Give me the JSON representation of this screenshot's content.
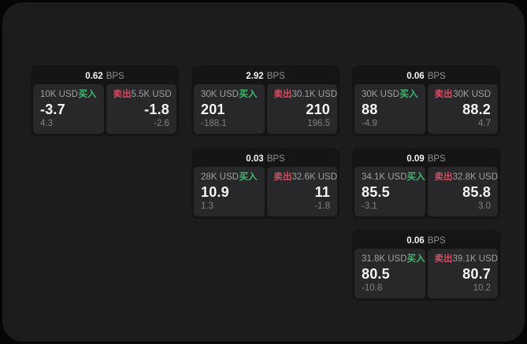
{
  "labels": {
    "bps_unit": "BPS",
    "buy": "买入",
    "sell": "卖出"
  },
  "colors": {
    "outer_bg": "#060606",
    "page_bg": "#1c1c1e",
    "card_bg": "#151516",
    "panel_bg": "#28282a",
    "buy_green": "#40b96e",
    "sell_red": "#cf5062"
  },
  "cards": [
    {
      "spread": "0.62",
      "buy": {
        "amount": "10K USD",
        "price": "-3.7",
        "sub": "4.3"
      },
      "sell": {
        "amount": "5.5K USD",
        "price": "-1.8",
        "sub": "-2.6"
      }
    },
    {
      "spread": "2.92",
      "buy": {
        "amount": "30K USD",
        "price": "201",
        "sub": "-188.1"
      },
      "sell": {
        "amount": "30.1K USD",
        "price": "210",
        "sub": "196.5"
      }
    },
    {
      "spread": "0.06",
      "buy": {
        "amount": "30K USD",
        "price": "88",
        "sub": "-4.9"
      },
      "sell": {
        "amount": "30K USD",
        "price": "88.2",
        "sub": "4.7"
      }
    },
    {
      "spread": "0.03",
      "buy": {
        "amount": "28K USD",
        "price": "10.9",
        "sub": "1.3"
      },
      "sell": {
        "amount": "32.6K USD",
        "price": "11",
        "sub": "-1.8"
      }
    },
    {
      "spread": "0.09",
      "buy": {
        "amount": "34.1K USD",
        "price": "85.5",
        "sub": "-3.1"
      },
      "sell": {
        "amount": "32.8K USD",
        "price": "85.8",
        "sub": "3.0"
      }
    },
    {
      "spread": "0.06",
      "buy": {
        "amount": "31.8K USD",
        "price": "80.5",
        "sub": "-10.8"
      },
      "sell": {
        "amount": "39.1K USD",
        "price": "80.7",
        "sub": "10.2"
      }
    }
  ]
}
